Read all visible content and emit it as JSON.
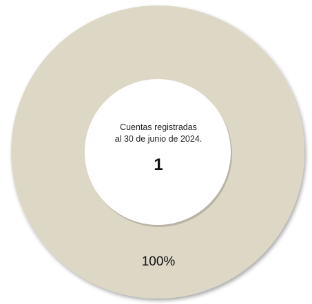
{
  "chart_data": {
    "type": "pie",
    "variant": "donut",
    "categories": [
      "Cuentas registradas"
    ],
    "values": [
      1
    ],
    "data_labels": [
      "100%"
    ],
    "colors": [
      "#ddd8c6"
    ],
    "center_text": {
      "line1": "Cuentas registradas",
      "line2": "al 30 de junio de 2024.",
      "value": "1"
    },
    "legend": "none"
  }
}
